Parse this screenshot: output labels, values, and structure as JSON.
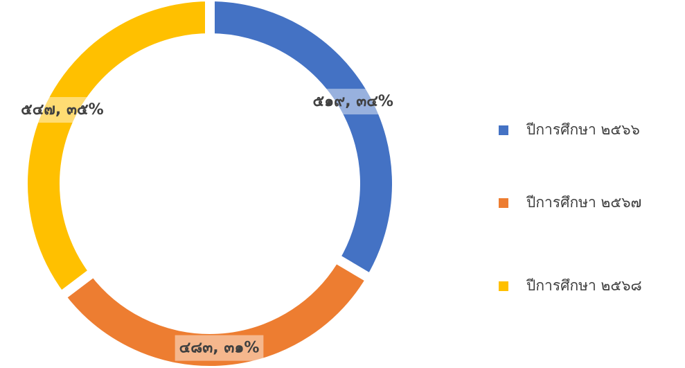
{
  "chart_data": {
    "type": "donut",
    "categories": [
      "ปีการศึกษา ๒๕๖๖",
      "ปีการศึกษา ๒๕๖๗",
      "ปีการศึกษา ๒๕๖๘"
    ],
    "values": [
      519,
      483,
      547
    ],
    "value_labels": [
      "๕๑๙, ๓๔%",
      "๔๘๓, ๓๑%",
      "๕๔๗, ๓๕%"
    ],
    "colors": [
      "#4472c4",
      "#ed7d31",
      "#ffc000"
    ],
    "legend": "right"
  }
}
